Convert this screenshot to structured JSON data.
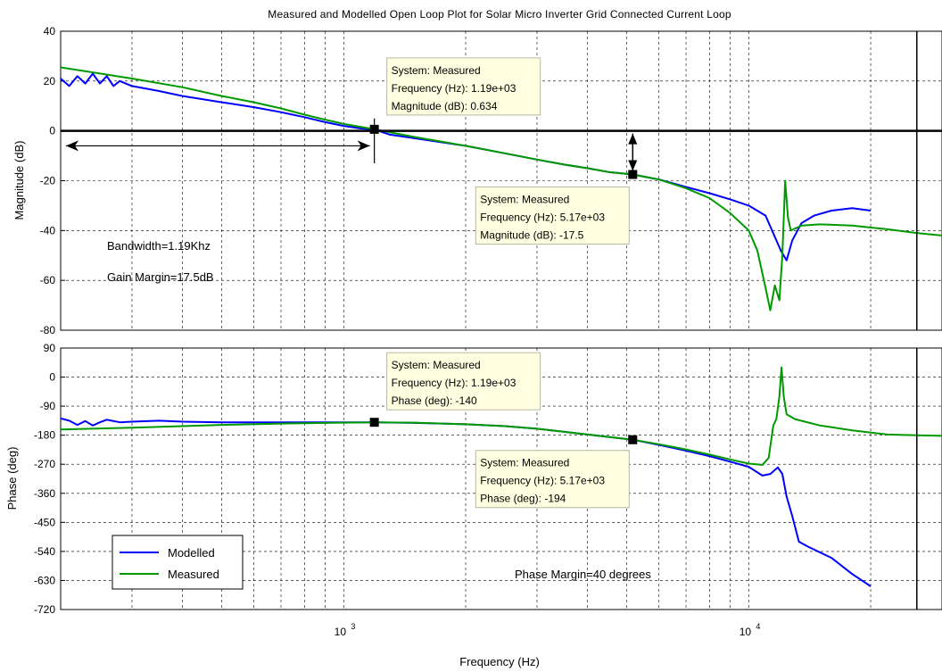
{
  "chart_data": {
    "type": "line",
    "title": "Measured and Modelled Open Loop Plot for Solar Micro Inverter Grid Connected Current Loop",
    "xlabel": "Frequency  (Hz)",
    "x_scale": "log",
    "xlim": [
      200,
      30000
    ],
    "x_ticks": [
      {
        "value": 1000,
        "base": "10",
        "exp": "3"
      },
      {
        "value": 10000,
        "base": "10",
        "exp": "4"
      }
    ],
    "grid": true,
    "legend": {
      "position": "bottom-left",
      "entries": [
        {
          "name": "Modelled",
          "color": "#0000ff"
        },
        {
          "name": "Measured",
          "color": "#009900"
        }
      ]
    },
    "magnitude": {
      "ylabel": "Magnitude (dB)",
      "ylim": [
        -80,
        40
      ],
      "y_ticks": [
        40,
        20,
        0,
        -20,
        -40,
        -60,
        -80
      ],
      "series": [
        {
          "name": "Modelled",
          "color": "#0000ff",
          "points": [
            [
              200,
              21
            ],
            [
              210,
              18
            ],
            [
              220,
              22
            ],
            [
              230,
              19
            ],
            [
              240,
              23
            ],
            [
              250,
              19
            ],
            [
              260,
              22
            ],
            [
              270,
              18
            ],
            [
              280,
              20
            ],
            [
              300,
              18
            ],
            [
              350,
              16
            ],
            [
              400,
              14
            ],
            [
              500,
              11.5
            ],
            [
              600,
              9.5
            ],
            [
              700,
              7.5
            ],
            [
              800,
              5.5
            ],
            [
              900,
              3.5
            ],
            [
              1000,
              2
            ],
            [
              1100,
              1
            ],
            [
              1190,
              0.6
            ],
            [
              1300,
              -1.5
            ],
            [
              1500,
              -3
            ],
            [
              2000,
              -6
            ],
            [
              2500,
              -9
            ],
            [
              3000,
              -11.5
            ],
            [
              3500,
              -13.5
            ],
            [
              4000,
              -15
            ],
            [
              4500,
              -16.5
            ],
            [
              5170,
              -17.5
            ],
            [
              6000,
              -19.5
            ],
            [
              7000,
              -22.5
            ],
            [
              8000,
              -25
            ],
            [
              9000,
              -27.5
            ],
            [
              10000,
              -30
            ],
            [
              11000,
              -34
            ],
            [
              12000,
              -48
            ],
            [
              12400,
              -52
            ],
            [
              12800,
              -44
            ],
            [
              13500,
              -37
            ],
            [
              14500,
              -34
            ],
            [
              16000,
              -32
            ],
            [
              18000,
              -31
            ],
            [
              20000,
              -32
            ]
          ]
        },
        {
          "name": "Measured",
          "color": "#009900",
          "points": [
            [
              200,
              25.5
            ],
            [
              300,
              21
            ],
            [
              400,
              17.5
            ],
            [
              500,
              14
            ],
            [
              600,
              11.5
            ],
            [
              700,
              9
            ],
            [
              800,
              6.5
            ],
            [
              900,
              4.5
            ],
            [
              1000,
              2.8
            ],
            [
              1190,
              0.634
            ],
            [
              1500,
              -2.5
            ],
            [
              2000,
              -6
            ],
            [
              2500,
              -9
            ],
            [
              3000,
              -11.5
            ],
            [
              3500,
              -13.5
            ],
            [
              4000,
              -15
            ],
            [
              4500,
              -16.5
            ],
            [
              5170,
              -17.5
            ],
            [
              6000,
              -19.5
            ],
            [
              7000,
              -23
            ],
            [
              8000,
              -27
            ],
            [
              9000,
              -33
            ],
            [
              10000,
              -40
            ],
            [
              10500,
              -48
            ],
            [
              11000,
              -63
            ],
            [
              11300,
              -72
            ],
            [
              11600,
              -62
            ],
            [
              11900,
              -68
            ],
            [
              12100,
              -50
            ],
            [
              12300,
              -20
            ],
            [
              12500,
              -35
            ],
            [
              12700,
              -40
            ],
            [
              13500,
              -38
            ],
            [
              15000,
              -37.5
            ],
            [
              18000,
              -38
            ],
            [
              22000,
              -39.5
            ],
            [
              26000,
              -41
            ],
            [
              30000,
              -42
            ]
          ]
        }
      ]
    },
    "phase": {
      "ylabel": "Phase (deg)",
      "ylim": [
        -720,
        90
      ],
      "y_ticks": [
        90,
        0,
        -90,
        -180,
        -270,
        -360,
        -450,
        -540,
        -630,
        -720
      ],
      "series": [
        {
          "name": "Modelled",
          "color": "#0000ff",
          "points": [
            [
              200,
              -128
            ],
            [
              210,
              -135
            ],
            [
              220,
              -148
            ],
            [
              230,
              -136
            ],
            [
              240,
              -150
            ],
            [
              250,
              -140
            ],
            [
              260,
              -132
            ],
            [
              280,
              -140
            ],
            [
              300,
              -138
            ],
            [
              350,
              -135
            ],
            [
              400,
              -138
            ],
            [
              500,
              -140
            ],
            [
              700,
              -140
            ],
            [
              1000,
              -140
            ],
            [
              1190,
              -140
            ],
            [
              1500,
              -142
            ],
            [
              2000,
              -146
            ],
            [
              2500,
              -152
            ],
            [
              3000,
              -160
            ],
            [
              4000,
              -178
            ],
            [
              5170,
              -194
            ],
            [
              6000,
              -210
            ],
            [
              7000,
              -228
            ],
            [
              8000,
              -245
            ],
            [
              9000,
              -262
            ],
            [
              10000,
              -278
            ],
            [
              10800,
              -305
            ],
            [
              11300,
              -300
            ],
            [
              11800,
              -280
            ],
            [
              12100,
              -300
            ],
            [
              12400,
              -370
            ],
            [
              12800,
              -430
            ],
            [
              13300,
              -510
            ],
            [
              14000,
              -525
            ],
            [
              16000,
              -560
            ],
            [
              18000,
              -610
            ],
            [
              20000,
              -648
            ]
          ]
        },
        {
          "name": "Measured",
          "color": "#009900",
          "points": [
            [
              200,
              -162
            ],
            [
              300,
              -157
            ],
            [
              400,
              -152
            ],
            [
              500,
              -148
            ],
            [
              700,
              -144
            ],
            [
              1000,
              -141
            ],
            [
              1190,
              -140
            ],
            [
              1500,
              -141
            ],
            [
              2000,
              -146
            ],
            [
              2500,
              -152
            ],
            [
              3000,
              -160
            ],
            [
              4000,
              -178
            ],
            [
              5170,
              -194
            ],
            [
              6000,
              -208
            ],
            [
              7000,
              -224
            ],
            [
              8000,
              -240
            ],
            [
              9000,
              -255
            ],
            [
              10000,
              -268
            ],
            [
              10800,
              -272
            ],
            [
              11200,
              -250
            ],
            [
              11500,
              -150
            ],
            [
              11700,
              -130
            ],
            [
              11900,
              -60
            ],
            [
              12050,
              30
            ],
            [
              12200,
              -60
            ],
            [
              12400,
              -115
            ],
            [
              13000,
              -130
            ],
            [
              15000,
              -150
            ],
            [
              18000,
              -165
            ],
            [
              22000,
              -178
            ],
            [
              26000,
              -180
            ],
            [
              30000,
              -182
            ]
          ]
        }
      ]
    },
    "markers": [
      {
        "panel": "magnitude",
        "x": 1190,
        "y": 0.634
      },
      {
        "panel": "magnitude",
        "x": 5170,
        "y": -17.5
      },
      {
        "panel": "phase",
        "x": 1190,
        "y": -140
      },
      {
        "panel": "phase",
        "x": 5170,
        "y": -194
      }
    ],
    "datatips": [
      {
        "panel": "magnitude",
        "anchor_x": 1190,
        "anchor_y": 0.634,
        "lines": [
          "System: Measured",
          "Frequency (Hz): 1.19e+03",
          "Magnitude (dB): 0.634"
        ]
      },
      {
        "panel": "magnitude",
        "anchor_x": 5170,
        "anchor_y": -17.5,
        "lines": [
          "System: Measured",
          "Frequency (Hz): 5.17e+03",
          "Magnitude (dB): -17.5"
        ]
      },
      {
        "panel": "phase",
        "anchor_x": 1190,
        "anchor_y": -140,
        "lines": [
          "System: Measured",
          "Frequency (Hz): 1.19e+03",
          "Phase (deg): -140"
        ]
      },
      {
        "panel": "phase",
        "anchor_x": 5170,
        "anchor_y": -194,
        "lines": [
          "System: Measured",
          "Frequency (Hz): 5.17e+03",
          "Phase (deg): -194"
        ]
      }
    ],
    "annotations": [
      {
        "panel": "magnitude",
        "text": "Bandwidth=1.19Khz"
      },
      {
        "panel": "magnitude",
        "text": "Gain Margin=17.5dB"
      },
      {
        "panel": "phase",
        "text": "Phase Margin=40 degrees"
      }
    ],
    "bandwidth_arrow": {
      "x_from": 200,
      "x_to": 1190,
      "y": -6
    },
    "gain_margin_arrow": {
      "x": 5170,
      "y_from": 0,
      "y_to": -17.5
    },
    "reference_lines": {
      "magnitude_zero_db": 0,
      "vertical_x": 26000
    }
  }
}
